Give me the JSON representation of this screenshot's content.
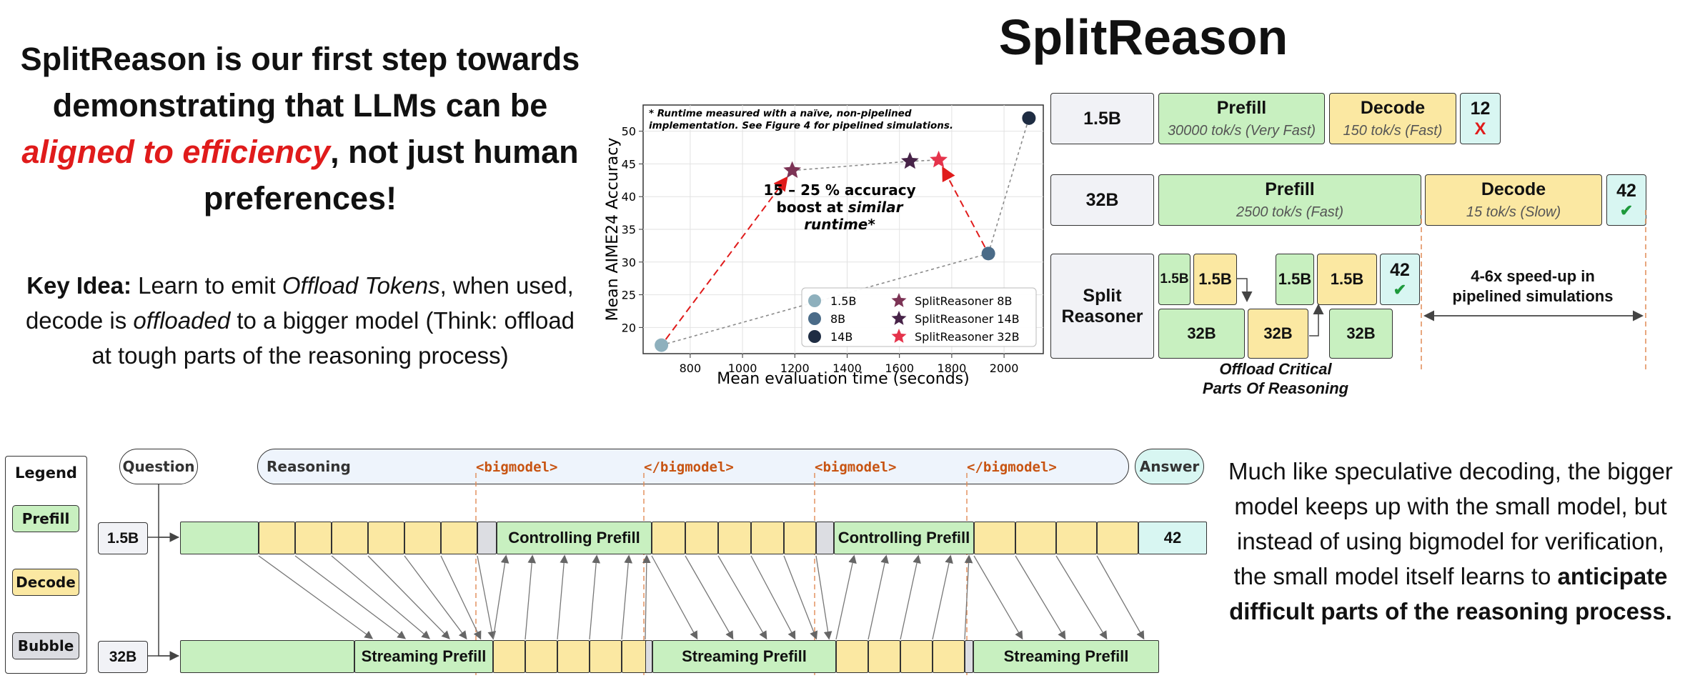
{
  "intro": {
    "line_before": "SplitReason is our first step towards demonstrating that LLMs can be ",
    "emphasis": "aligned to efficiency",
    "line_after": ", not just human preferences!"
  },
  "key_idea": {
    "label": "Key Idea:",
    "t1": " Learn to emit ",
    "i1": "Offload Tokens",
    "t2": ", when used, decode is ",
    "i2": "offloaded",
    "t3": " to a bigger model (Think: offload at tough parts of the reasoning process)"
  },
  "title": "SplitReason",
  "chart_data": {
    "type": "scatter",
    "title": "",
    "xlabel": "Mean evaluation time (seconds)",
    "ylabel": "Mean AIME24 Accuracy",
    "xlim": [
      620,
      2150
    ],
    "ylim": [
      16,
      54
    ],
    "xticks": [
      800,
      1000,
      1200,
      1400,
      1600,
      1800,
      2000
    ],
    "yticks": [
      20,
      25,
      30,
      35,
      40,
      45,
      50
    ],
    "grid": true,
    "legend_position": "bottom-right",
    "note_line1": "* Runtime measured with a naïve, non-pipelined",
    "note_line2": "implementation. See Figure 4 for pipelined simulations.",
    "annotation_line1": "15 – 25 % accuracy",
    "annotation_line2": "boost at ",
    "annotation_line2_italic": "similar",
    "annotation_line3": "runtime*",
    "series": [
      {
        "name": "1.5B",
        "marker": "circle",
        "color": "#8eb0bd",
        "x": 690,
        "y": 17.3
      },
      {
        "name": "8B",
        "marker": "circle",
        "color": "#4a6b88",
        "x": 1940,
        "y": 31.3
      },
      {
        "name": "14B",
        "marker": "circle",
        "color": "#1f2d43",
        "x": 2095,
        "y": 52.0
      },
      {
        "name": "SplitReasoner 8B",
        "marker": "star",
        "color": "#7c3355",
        "x": 1190,
        "y": 44.0
      },
      {
        "name": "SplitReasoner 14B",
        "marker": "star",
        "color": "#472348",
        "x": 1640,
        "y": 45.4
      },
      {
        "name": "SplitReasoner 32B",
        "marker": "star",
        "color": "#e5334b",
        "x": 1750,
        "y": 45.6
      }
    ]
  },
  "throughput": {
    "row1_label": "1.5B",
    "row1_prefill": "Prefill",
    "row1_prefill_sub": "30000 tok/s (Very Fast)",
    "row1_decode": "Decode",
    "row1_decode_sub": "150 tok/s (Fast)",
    "row1_answer": "12",
    "row1_mark": "X",
    "row2_label": "32B",
    "row2_prefill": "Prefill",
    "row2_prefill_sub": "2500 tok/s (Fast)",
    "row2_decode": "Decode",
    "row2_decode_sub": "15 tok/s (Slow)",
    "row2_answer": "42",
    "row3_label_line1": "Split",
    "row3_label_line2": "Reasoner",
    "small_1": "1.5B",
    "small_2": "1.5B",
    "small_3": "1.5B",
    "small_4": "1.5B",
    "big_1": "32B",
    "big_2": "32B",
    "big_3": "32B",
    "row3_answer": "42",
    "speedup_line1": "4-6x speed-up in",
    "speedup_line2": "pipelined simulations",
    "offload_line1": "Offload Critical",
    "offload_line2": "Parts Of Reasoning"
  },
  "timeline": {
    "legend_title": "Legend",
    "legend_prefill": "Prefill",
    "legend_decode": "Decode",
    "legend_bubble": "Bubble",
    "question": "Question",
    "reasoning": "Reasoning",
    "answer": "Answer",
    "tag_open_1": "<bigmodel>",
    "tag_close_1": "</bigmodel>",
    "tag_open_2": "<bigmodel>",
    "tag_close_2": "</bigmodel>",
    "row_small": "1.5B",
    "row_big": "32B",
    "controlling_1": "Controlling Prefill",
    "controlling_2": "Controlling Prefill",
    "answer_value": "42",
    "streaming_1": "Streaming Prefill",
    "streaming_2": "Streaming Prefill",
    "streaming_3": "Streaming Prefill"
  },
  "speculative": {
    "t1": "Much like speculative decoding, the bigger model keeps up with the small model, but instead of using bigmodel for verification, the small model itself learns to ",
    "b1": "anticipate difficult parts of the reasoning process."
  },
  "colors": {
    "prefill": "#c8f0c0",
    "decode": "#fbe8a2",
    "bubble": "#dcdde2",
    "answer": "#d8f6f2",
    "accent_red": "#e01b1b",
    "tag_orange": "#c85412"
  }
}
